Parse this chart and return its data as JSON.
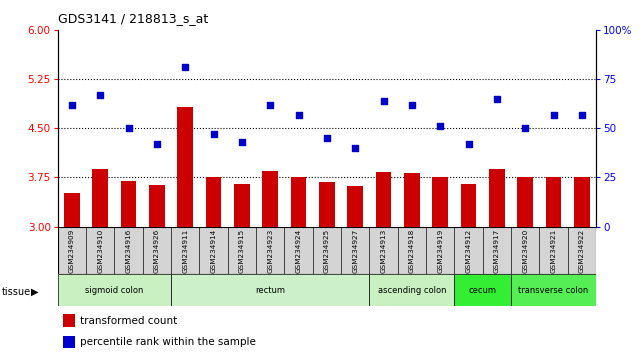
{
  "title": "GDS3141 / 218813_s_at",
  "samples": [
    "GSM234909",
    "GSM234910",
    "GSM234916",
    "GSM234926",
    "GSM234911",
    "GSM234914",
    "GSM234915",
    "GSM234923",
    "GSM234924",
    "GSM234925",
    "GSM234927",
    "GSM234913",
    "GSM234918",
    "GSM234919",
    "GSM234912",
    "GSM234917",
    "GSM234920",
    "GSM234921",
    "GSM234922"
  ],
  "bar_values": [
    3.52,
    3.88,
    3.7,
    3.63,
    4.82,
    3.75,
    3.65,
    3.85,
    3.75,
    3.68,
    3.62,
    3.84,
    3.82,
    3.75,
    3.65,
    3.88,
    3.75,
    3.76,
    3.75
  ],
  "dot_values": [
    62,
    67,
    50,
    42,
    81,
    47,
    43,
    62,
    57,
    45,
    40,
    64,
    62,
    51,
    42,
    65,
    50,
    57,
    57
  ],
  "bar_color": "#cc0000",
  "dot_color": "#0000cc",
  "ylim_left": [
    3.0,
    6.0
  ],
  "ylim_right": [
    0,
    100
  ],
  "yticks_left": [
    3.0,
    3.75,
    4.5,
    5.25,
    6.0
  ],
  "yticks_right": [
    0,
    25,
    50,
    75,
    100
  ],
  "hlines": [
    3.75,
    4.5,
    5.25
  ],
  "tissue_groups": [
    {
      "label": "sigmoid colon",
      "start": 0,
      "end": 4
    },
    {
      "label": "rectum",
      "start": 4,
      "end": 11
    },
    {
      "label": "ascending colon",
      "start": 11,
      "end": 14
    },
    {
      "label": "cecum",
      "start": 14,
      "end": 16
    },
    {
      "label": "transverse colon",
      "start": 16,
      "end": 19
    }
  ],
  "tissue_colors": [
    "#c8f0c0",
    "#ccf0c8",
    "#c8f0c0",
    "#33ee33",
    "#55ee55"
  ],
  "legend_bar": "transformed count",
  "legend_dot": "percentile rank within the sample"
}
